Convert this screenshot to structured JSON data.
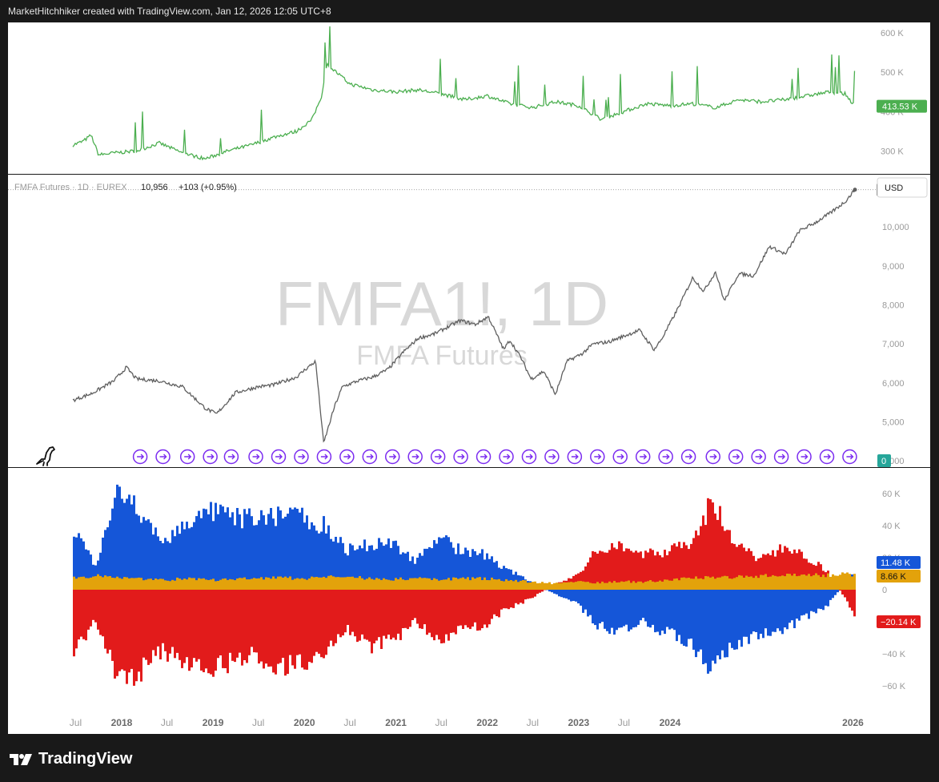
{
  "header": {
    "text": "MarketHitchhiker created with TradingView.com, Jan 12, 2026 12:05 UTC+8"
  },
  "footer": {
    "brand": "TradingView",
    "logo_icon": "tradingview-logo-icon"
  },
  "colors": {
    "oi_line": "#4caf50",
    "price_line": "#5f5f5f",
    "commercials": "#1556d8",
    "non_commercials": "#e21b1b",
    "small": "#e3a20b",
    "marker": "#7b2cf0",
    "axis_text": "#9a9a9a",
    "watermark": "#d8d8d8"
  },
  "top_pane": {
    "y_ticks": [
      "600 K",
      "500 K",
      "400 K",
      "300 K"
    ],
    "last_label": "413.53 K"
  },
  "main_pane": {
    "legend": {
      "symbol": "FMFA Futures · 1D · EUREX",
      "last": "10,956",
      "change": "+103 (+0.95%)"
    },
    "currency": "USD",
    "watermark_symbol": "FMFA1!, 1D",
    "watermark_name": "FMFA Futures",
    "y_ticks": [
      "10,000",
      "9,000",
      "8,000",
      "7,000",
      "6,000",
      "5,000",
      "4,000"
    ],
    "last_label": "10,956",
    "zero_label": "0",
    "dino_icon": "dinosaur-icon",
    "event_icon": "rollover-event-icon"
  },
  "bottom_pane": {
    "y_ticks": [
      "60 K",
      "40 K",
      "20 K",
      "0",
      "−40 K",
      "−60 K"
    ],
    "labels": [
      "11.48 K",
      "8.66 K",
      "−20.14 K"
    ]
  },
  "x_axis": {
    "ticks": [
      {
        "label": "Jul",
        "bold": false
      },
      {
        "label": "2018",
        "bold": true
      },
      {
        "label": "Jul",
        "bold": false
      },
      {
        "label": "2019",
        "bold": true
      },
      {
        "label": "Jul",
        "bold": false
      },
      {
        "label": "2020",
        "bold": true
      },
      {
        "label": "Jul",
        "bold": false
      },
      {
        "label": "2021",
        "bold": true
      },
      {
        "label": "Jul",
        "bold": false
      },
      {
        "label": "2022",
        "bold": true
      },
      {
        "label": "Jul",
        "bold": false
      },
      {
        "label": "2023",
        "bold": true
      },
      {
        "label": "Jul",
        "bold": false
      },
      {
        "label": "2024",
        "bold": true
      },
      {
        "label": "2026",
        "bold": true
      }
    ]
  },
  "chart_data": [
    {
      "type": "line",
      "title": "",
      "ylim": [
        250000,
        610000
      ],
      "x": [
        "2017-06-20",
        "2017-08-01",
        "2017-09-01",
        "2017-10-01",
        "2017-12-01",
        "2018-03-01",
        "2018-06-01",
        "2018-09-01",
        "2018-12-01",
        "2019-03-01",
        "2019-06-01",
        "2019-09-01",
        "2019-12-01",
        "2020-02-01",
        "2020-03-10",
        "2020-04-01",
        "2020-07-01",
        "2020-10-01",
        "2021-01-01",
        "2021-04-01",
        "2021-07-01",
        "2021-10-01",
        "2022-01-01",
        "2022-04-01",
        "2022-07-01",
        "2022-10-01",
        "2023-01-01",
        "2023-04-01",
        "2023-07-01",
        "2023-10-01",
        "2024-01-01",
        "2024-04-01",
        "2024-07-01",
        "2024-10-01",
        "2025-01-01",
        "2025-04-01",
        "2025-07-01",
        "2025-10-01",
        "2025-12-01",
        "2026-01-09"
      ],
      "y": [
        315000,
        325000,
        340000,
        290000,
        295000,
        300000,
        320000,
        295000,
        280000,
        300000,
        315000,
        335000,
        350000,
        380000,
        440000,
        520000,
        470000,
        455000,
        450000,
        455000,
        445000,
        430000,
        440000,
        420000,
        410000,
        425000,
        415000,
        380000,
        400000,
        420000,
        415000,
        420000,
        410000,
        430000,
        425000,
        430000,
        440000,
        450000,
        445000,
        413530
      ],
      "last_value": 413530
    },
    {
      "type": "line",
      "title": "FMFA Futures · 1D · EUREX",
      "ylim": [
        3900,
        11300
      ],
      "x": [
        "2017-06-20",
        "2017-09-01",
        "2017-12-01",
        "2018-01-20",
        "2018-03-01",
        "2018-06-01",
        "2018-09-01",
        "2018-12-01",
        "2019-01-15",
        "2019-04-01",
        "2019-07-01",
        "2019-09-01",
        "2019-12-01",
        "2020-01-15",
        "2020-02-15",
        "2020-03-18",
        "2020-05-01",
        "2020-06-01",
        "2020-08-01",
        "2020-10-01",
        "2020-12-01",
        "2021-02-01",
        "2021-04-01",
        "2021-06-01",
        "2021-08-01",
        "2021-09-15",
        "2021-11-15",
        "2022-01-05",
        "2022-03-08",
        "2022-04-01",
        "2022-05-15",
        "2022-06-25",
        "2022-08-15",
        "2022-09-30",
        "2022-11-15",
        "2023-01-15",
        "2023-03-01",
        "2023-05-01",
        "2023-07-01",
        "2023-09-01",
        "2023-10-30",
        "2023-12-01",
        "2024-02-01",
        "2024-04-01",
        "2024-05-15",
        "2024-07-01",
        "2024-08-05",
        "2024-10-01",
        "2024-12-01",
        "2025-02-01",
        "2025-04-07",
        "2025-06-01",
        "2025-08-01",
        "2025-10-01",
        "2025-12-01",
        "2026-01-09"
      ],
      "y": [
        5550,
        5720,
        6050,
        6400,
        6100,
        6050,
        5900,
        5350,
        5200,
        5750,
        5900,
        5950,
        6150,
        6400,
        6550,
        4450,
        5400,
        5900,
        6050,
        6150,
        6350,
        6800,
        7150,
        7250,
        7450,
        7600,
        7500,
        7700,
        6850,
        7100,
        6650,
        6100,
        6300,
        5700,
        6550,
        6750,
        7000,
        7050,
        7200,
        7350,
        6850,
        7150,
        7900,
        8700,
        8350,
        8850,
        8100,
        8800,
        8750,
        9500,
        9300,
        9900,
        10100,
        10350,
        10650,
        10956
      ],
      "last_value": 10956,
      "change": "+103 (+0.95%)"
    },
    {
      "type": "bar",
      "title": "",
      "ylim": [
        -68000,
        68000
      ],
      "x": [
        "2017-06",
        "2017-09",
        "2017-12",
        "2018-03",
        "2018-06",
        "2018-09",
        "2018-12",
        "2019-03",
        "2019-06",
        "2019-09",
        "2019-12",
        "2020-03",
        "2020-06",
        "2020-09",
        "2020-12",
        "2021-03",
        "2021-06",
        "2021-09",
        "2021-12",
        "2022-03",
        "2022-06",
        "2022-09",
        "2022-12",
        "2023-03",
        "2023-06",
        "2023-09",
        "2023-12",
        "2024-03",
        "2024-06",
        "2024-09",
        "2024-12",
        "2025-03",
        "2025-06",
        "2025-09",
        "2025-12",
        "2026-01"
      ],
      "series": [
        {
          "values": [
            40000,
            15000,
            60000,
            48000,
            30000,
            42000,
            48000,
            45000,
            44000,
            47000,
            46000,
            40000,
            25000,
            28000,
            30000,
            18000,
            33000,
            24000,
            22000,
            13000,
            5000,
            -2000,
            -8000,
            -22000,
            -26000,
            -20000,
            -27000,
            -32000,
            -50000,
            -33000,
            -28000,
            -25000,
            -18000,
            -10000,
            8000,
            11480
          ]
        },
        {
          "values": [
            -40000,
            -20000,
            -58000,
            -50000,
            -38000,
            -45000,
            -50000,
            -45000,
            -40000,
            -48000,
            -45000,
            -42000,
            -25000,
            -35000,
            -32000,
            -20000,
            -32000,
            -24000,
            -22000,
            -12000,
            -6000,
            3000,
            8000,
            25000,
            28000,
            22000,
            24000,
            30000,
            55000,
            28000,
            20000,
            25000,
            22000,
            12000,
            -10000,
            -20140
          ]
        },
        {
          "values": [
            7000,
            9000,
            8000,
            7000,
            6000,
            7000,
            6000,
            6500,
            7000,
            7500,
            7000,
            8000,
            8000,
            7000,
            6500,
            7000,
            6500,
            7000,
            7000,
            6000,
            5000,
            4000,
            5000,
            4500,
            5000,
            5000,
            6000,
            7000,
            8000,
            8000,
            8500,
            9000,
            9500,
            9000,
            10000,
            8660
          ]
        }
      ],
      "last_values": [
        11480,
        8660,
        -20140
      ]
    }
  ]
}
